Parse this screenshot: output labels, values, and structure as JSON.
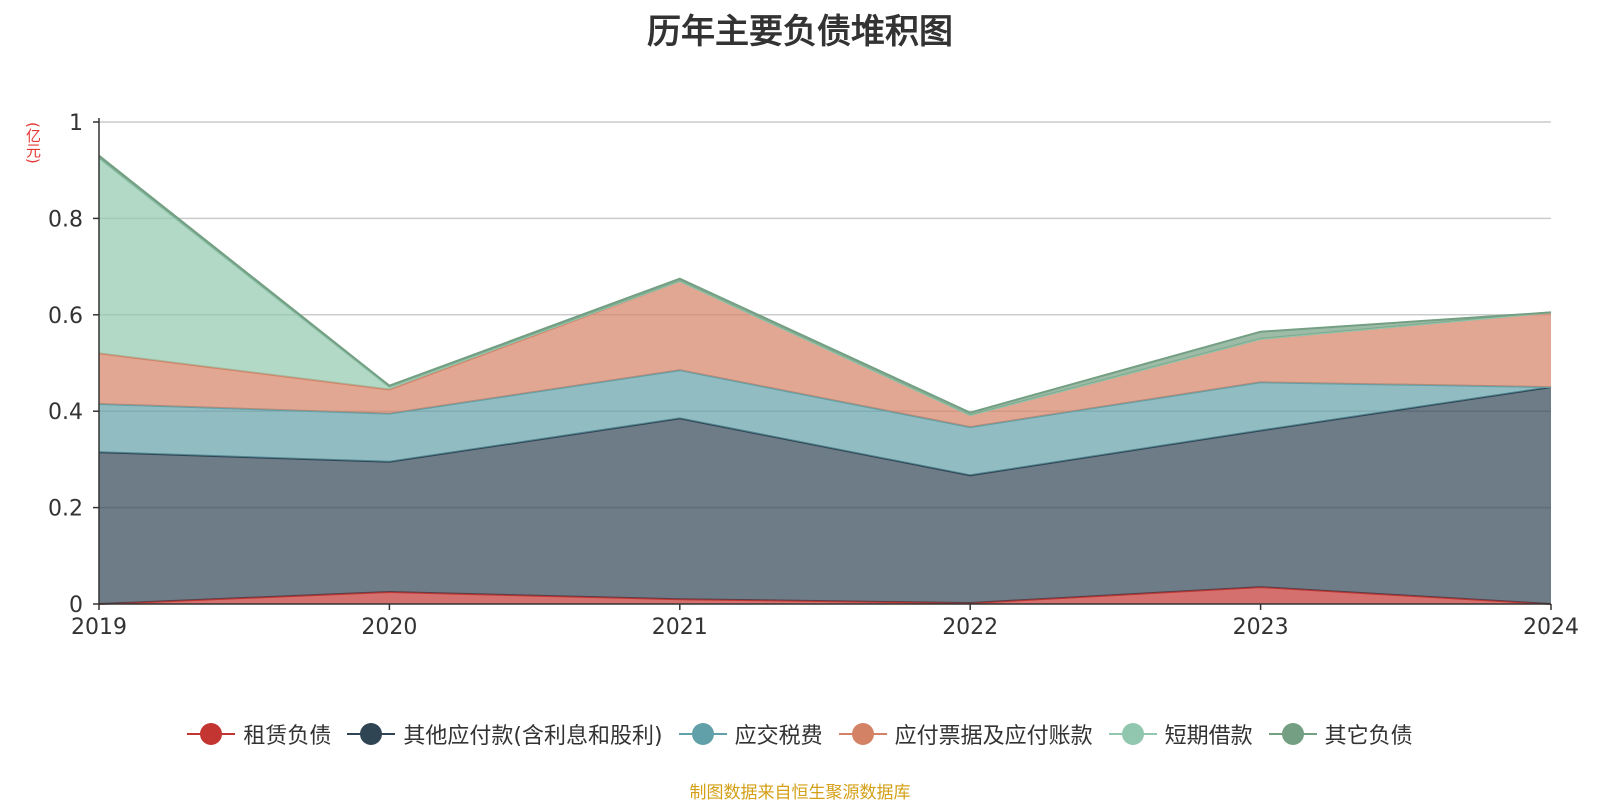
{
  "chart_data": {
    "type": "area",
    "stacked": true,
    "title": "历年主要负债堆积图",
    "y_unit": "(亿元)",
    "x": [
      "2019",
      "2020",
      "2021",
      "2022",
      "2023",
      "2024"
    ],
    "ylim": [
      0,
      1
    ],
    "yticks": [
      "0",
      "0.2",
      "0.4",
      "0.6",
      "0.8",
      "1"
    ],
    "series": [
      {
        "name": "租赁负债",
        "color": "#c23531",
        "values": [
          0.0,
          0.025,
          0.01,
          0.002,
          0.035,
          0.0
        ]
      },
      {
        "name": "其他应付款(含利息和股利)",
        "color": "#2f4554",
        "values": [
          0.315,
          0.27,
          0.375,
          0.265,
          0.325,
          0.45
        ]
      },
      {
        "name": "应交税费",
        "color": "#61a0a8",
        "values": [
          0.1,
          0.1,
          0.1,
          0.1,
          0.1,
          0.0
        ]
      },
      {
        "name": "应付票据及应付账款",
        "color": "#d48265",
        "values": [
          0.105,
          0.05,
          0.185,
          0.025,
          0.09,
          0.155
        ]
      },
      {
        "name": "短期借款",
        "color": "#91c7ae",
        "values": [
          0.405,
          0.005,
          0.0,
          0.0,
          0.0,
          0.0
        ]
      },
      {
        "name": "其它负债",
        "color": "#749f83",
        "values": [
          0.005,
          0.003,
          0.005,
          0.005,
          0.015,
          0.0
        ]
      }
    ],
    "grid": true,
    "legend_position": "bottom"
  },
  "source": "制图数据来自恒生聚源数据库"
}
